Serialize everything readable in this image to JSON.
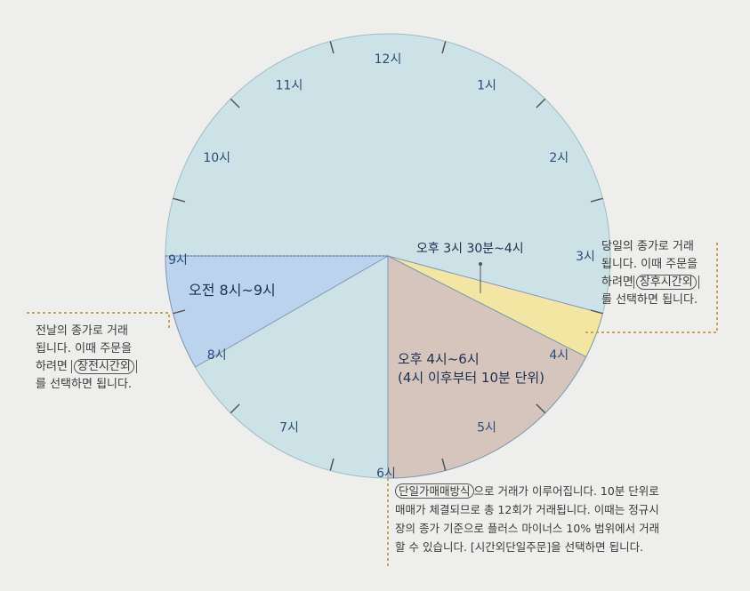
{
  "clock": {
    "hours": [
      "12시",
      "1시",
      "2시",
      "3시",
      "4시",
      "5시",
      "6시",
      "7시",
      "8시",
      "9시",
      "10시",
      "11시"
    ]
  },
  "segments": {
    "morning": "오전 8시~9시",
    "closing_range": "오후 3시 30분~4시",
    "single_price_line1": "오후 4시~6시",
    "single_price_line2": "(4시 이후부터 10분 단위)"
  },
  "notes": {
    "left": {
      "line1": "전날의 종가로 거래",
      "line2": "됩니다. 이때 주문을",
      "line3_prefix": "하려면 ",
      "line3_term": "장전시간외",
      "line4": "를 선택하면 됩니다."
    },
    "right": {
      "line1": "당일의 종가로 거래",
      "line2": "됩니다. 이때 주문을",
      "line3_prefix": "하려면",
      "line3_term": "장후시간외",
      "line4": "를 선택하면 됩니다."
    },
    "bottom": {
      "line1_term": "단일가매매방식",
      "line1_rest": "으로 거래가 이루어집니다. 10분 단위로",
      "line2": "매매가 체결되므로 총 12회가 거래됩니다. 이때는 정규시",
      "line3": "장의 종가 기준으로 플러스 마이너스 10% 범위에서 거래",
      "line4": "할 수 있습니다. [시간외단일주문]을 선택하면 됩니다."
    }
  },
  "colors": {
    "clock_face": "#cde2e6",
    "morning_sector": "#bcd3ee",
    "closing_sector": "#f3e6a2",
    "single_price_sector": "#d5c5bc",
    "ticks": "#555555",
    "hour_text": "#2b4d7a",
    "leader": "#c8a45a"
  }
}
